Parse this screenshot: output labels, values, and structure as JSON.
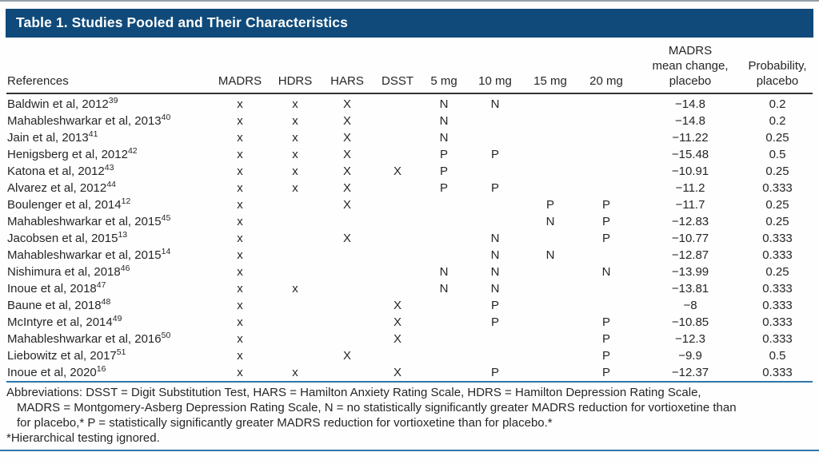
{
  "page": {
    "title": "Table 1. Studies Pooled and Their Characteristics"
  },
  "table": {
    "headers": {
      "references": "References",
      "madrs": "MADRS",
      "hdrs": "HDRS",
      "hars": "HARS",
      "dsst": "DSST",
      "mg5": "5 mg",
      "mg10": "10 mg",
      "mg15": "15 mg",
      "mg20": "20 mg",
      "mean_change": "MADRS\nmean change,\nplacebo",
      "probability": "Probability,\nplacebo"
    },
    "rows": [
      {
        "reference": "Baldwin et al, 2012",
        "superscript": "39",
        "cells": [
          "x",
          "x",
          "X",
          "",
          "N",
          "N",
          "",
          "",
          "−14.8",
          "0.2"
        ]
      },
      {
        "reference": "Mahableshwarkar et al, 2013",
        "superscript": "40",
        "cells": [
          "x",
          "x",
          "X",
          "",
          "N",
          "",
          "",
          "",
          "−14.8",
          "0.2"
        ]
      },
      {
        "reference": "Jain et al, 2013",
        "superscript": "41",
        "cells": [
          "x",
          "x",
          "X",
          "",
          "N",
          "",
          "",
          "",
          "−11.22",
          "0.25"
        ]
      },
      {
        "reference": "Henigsberg et al, 2012",
        "superscript": "42",
        "cells": [
          "x",
          "x",
          "X",
          "",
          "P",
          "P",
          "",
          "",
          "−15.48",
          "0.5"
        ]
      },
      {
        "reference": "Katona et al, 2012",
        "superscript": "43",
        "cells": [
          "x",
          "x",
          "X",
          "X",
          "P",
          "",
          "",
          "",
          "−10.91",
          "0.25"
        ]
      },
      {
        "reference": "Alvarez et al, 2012",
        "superscript": "44",
        "cells": [
          "x",
          "x",
          "X",
          "",
          "P",
          "P",
          "",
          "",
          "−11.2",
          "0.333"
        ]
      },
      {
        "reference": "Boulenger et al, 2014",
        "superscript": "12",
        "cells": [
          "x",
          "",
          "X",
          "",
          "",
          "",
          "P",
          "P",
          "−11.7",
          "0.25"
        ]
      },
      {
        "reference": "Mahableshwarkar et al, 2015",
        "superscript": "45",
        "cells": [
          "x",
          "",
          "",
          "",
          "",
          "",
          "N",
          "P",
          "−12.83",
          "0.25"
        ]
      },
      {
        "reference": "Jacobsen et al, 2015",
        "superscript": "13",
        "cells": [
          "x",
          "",
          "X",
          "",
          "",
          "N",
          "",
          "P",
          "−10.77",
          "0.333"
        ]
      },
      {
        "reference": "Mahableshwarkar et al, 2015",
        "superscript": "14",
        "cells": [
          "x",
          "",
          "",
          "",
          "",
          "N",
          "N",
          "",
          "−12.87",
          "0.333"
        ]
      },
      {
        "reference": "Nishimura et al, 2018",
        "superscript": "46",
        "cells": [
          "x",
          "",
          "",
          "",
          "N",
          "N",
          "",
          "N",
          "−13.99",
          "0.25"
        ]
      },
      {
        "reference": "Inoue et al, 2018",
        "superscript": "47",
        "cells": [
          "x",
          "x",
          "",
          "",
          "N",
          "N",
          "",
          "",
          "−13.81",
          "0.333"
        ]
      },
      {
        "reference": "Baune et al, 2018",
        "superscript": "48",
        "cells": [
          "x",
          "",
          "",
          "X",
          "",
          "P",
          "",
          "",
          "−8",
          "0.333"
        ]
      },
      {
        "reference": "McIntyre et al, 2014",
        "superscript": "49",
        "cells": [
          "x",
          "",
          "",
          "X",
          "",
          "P",
          "",
          "P",
          "−10.85",
          "0.333"
        ]
      },
      {
        "reference": "Mahableshwarkar et al, 2016",
        "superscript": "50",
        "cells": [
          "x",
          "",
          "",
          "X",
          "",
          "",
          "",
          "P",
          "−12.3",
          "0.333"
        ]
      },
      {
        "reference": "Liebowitz et al, 2017",
        "superscript": "51",
        "cells": [
          "x",
          "",
          "X",
          "",
          "",
          "",
          "",
          "P",
          "−9.9",
          "0.5"
        ]
      },
      {
        "reference": "Inoue et al, 2020",
        "superscript": "16",
        "cells": [
          "x",
          "x",
          "",
          "X",
          "",
          "P",
          "",
          "P",
          "−12.37",
          "0.333"
        ]
      }
    ]
  },
  "footnotes": {
    "line1": "Abbreviations: DSST = Digit Substitution Test, HARS = Hamilton Anxiety Rating Scale, HDRS = Hamilton Depression Rating Scale,",
    "line2": "MADRS = Montgomery-Asberg Depression Rating Scale, N = no statistically significantly greater MADRS reduction for vortioxetine than",
    "line3": "for placebo,* P = statistically significantly greater MADRS reduction for vortioxetine than for placebo.*",
    "line4": "*Hierarchical testing ignored."
  },
  "colors": {
    "title_bar_bg": "#0f4a7a",
    "title_text": "#ffffff",
    "rule_blue": "#2e76ab",
    "rule_gray": "#94a0a8",
    "header_rule": "#333333",
    "body_text": "#262626"
  }
}
